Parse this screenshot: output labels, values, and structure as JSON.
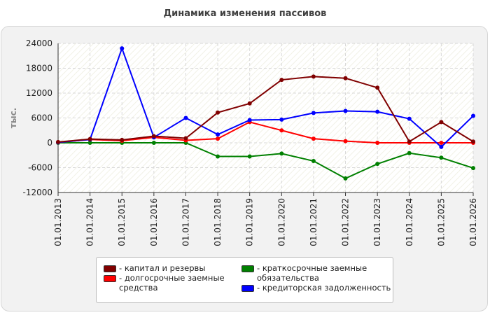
{
  "chart_data": {
    "type": "line",
    "title": "Динамика изменения пассивов",
    "ylabel": "тыс.",
    "xlabel": "",
    "categories": [
      "01.01.2013",
      "01.01.2014",
      "01.01.2015",
      "01.01.2016",
      "01.01.2017",
      "01.01.2018",
      "01.01.2019",
      "01.01.2020",
      "01.01.2021",
      "01.01.2022",
      "01.01.2023",
      "01.01.2024",
      "01.01.2025",
      "01.01.2026"
    ],
    "ylim": [
      -12000,
      24000
    ],
    "yticks": [
      24000,
      18000,
      12000,
      6000,
      0,
      -6000,
      -12000
    ],
    "grid": true,
    "legend_position": "bottom",
    "series": [
      {
        "name": "капитал и резервы",
        "color": "#800000",
        "values": [
          200,
          900,
          700,
          1600,
          1100,
          7300,
          9500,
          15200,
          16000,
          15600,
          13300,
          300,
          5000,
          300
        ]
      },
      {
        "name": "долгосрочные заемные средства",
        "color": "#ff0000",
        "values": [
          100,
          800,
          500,
          1300,
          600,
          1000,
          5000,
          3000,
          1000,
          400,
          0,
          0,
          0,
          0
        ]
      },
      {
        "name": "краткосрочные заемные обязательства",
        "color": "#008000",
        "values": [
          0,
          0,
          0,
          0,
          0,
          -3300,
          -3300,
          -2600,
          -4400,
          -8600,
          -5100,
          -2500,
          -3600,
          -6100
        ]
      },
      {
        "name": "кредиторская задолженность",
        "color": "#0000ff",
        "values": [
          100,
          800,
          22800,
          1300,
          6000,
          2000,
          5500,
          5600,
          7200,
          7700,
          7500,
          5800,
          -1000,
          6500
        ]
      }
    ]
  }
}
